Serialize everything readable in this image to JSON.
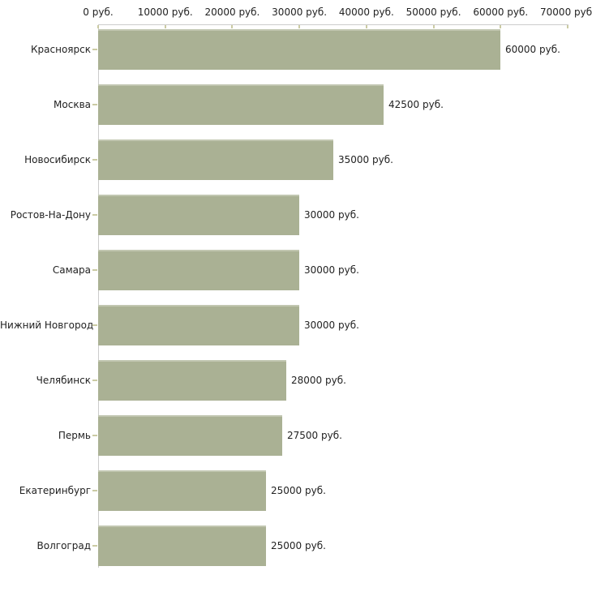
{
  "page": {
    "background": "#ffffff"
  },
  "chart_data": {
    "type": "bar",
    "orientation": "horizontal",
    "title": "",
    "xlabel": "",
    "ylabel": "",
    "unit": "руб.",
    "grid": false,
    "legend": null,
    "categories": [
      "Красноярск",
      "Москва",
      "Новосибирск",
      "Ростов-На-Дону",
      "Самара",
      "Нижний Новгород",
      "Челябинск",
      "Пермь",
      "Екатеринбург",
      "Волгоград"
    ],
    "values": [
      60000,
      42500,
      35000,
      30000,
      30000,
      30000,
      28000,
      27500,
      25000,
      25000
    ],
    "value_labels": [
      "60000 руб.",
      "42500 руб.",
      "35000 руб.",
      "30000 руб.",
      "30000 руб.",
      "30000 руб.",
      "28000 руб.",
      "27500 руб.",
      "25000 руб.",
      "25000 руб."
    ],
    "xlim": [
      0,
      70000
    ],
    "x_tick_values": [
      0,
      10000,
      20000,
      30000,
      40000,
      50000,
      60000,
      70000
    ],
    "x_tick_labels": [
      "0 руб.",
      "10000 руб.",
      "20000 руб.",
      "30000 руб.",
      "40000 руб.",
      "50000 руб.",
      "60000 руб.",
      "70000 руб."
    ],
    "colors": {
      "bar_fill": "#aab194",
      "bar_top_highlight": "#c1c6b0",
      "axis_line": "#cccccc",
      "tick_mark": "#cbcba4",
      "label_text": "#222222",
      "background": "#ffffff"
    }
  }
}
